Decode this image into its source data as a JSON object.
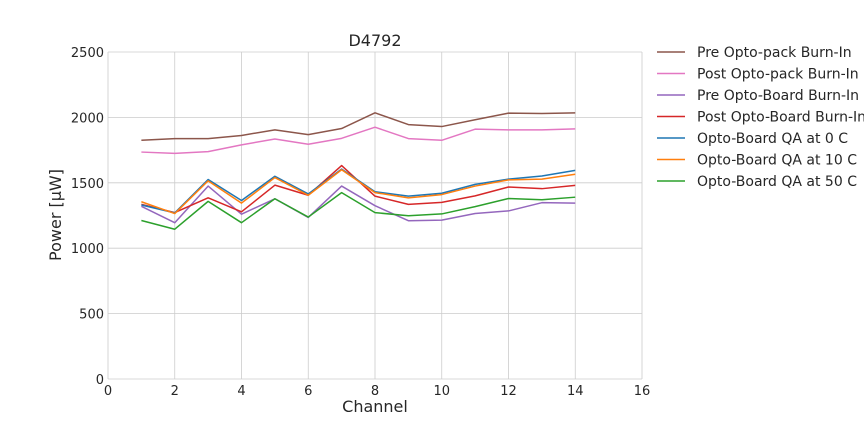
{
  "chart_data": {
    "type": "line",
    "title": "D4792",
    "xlabel": "Channel",
    "ylabel": "Power [μW]",
    "xlim": [
      0,
      16
    ],
    "ylim": [
      0,
      2500
    ],
    "xticks": [
      0,
      2,
      4,
      6,
      8,
      10,
      12,
      14,
      16
    ],
    "yticks": [
      0,
      500,
      1000,
      1500,
      2000,
      2500
    ],
    "grid": true,
    "legend_position": "outside-right-top",
    "x": [
      1,
      2,
      3,
      4,
      5,
      6,
      7,
      8,
      9,
      10,
      11,
      12,
      13,
      14
    ],
    "series": [
      {
        "name": "Pre Opto-pack Burn-In",
        "color": "#8c564b",
        "values": [
          1825,
          1838,
          1838,
          1862,
          1905,
          1868,
          1915,
          2035,
          1945,
          1930,
          1982,
          2033,
          2030,
          2035
        ]
      },
      {
        "name": "Post Opto-pack Burn-In",
        "color": "#e377c2",
        "values": [
          1735,
          1725,
          1738,
          1790,
          1835,
          1795,
          1840,
          1925,
          1838,
          1825,
          1910,
          1905,
          1905,
          1912
        ]
      },
      {
        "name": "Pre Opto-Board Burn-In",
        "color": "#9467bd",
        "values": [
          1320,
          1195,
          1475,
          1260,
          1378,
          1235,
          1475,
          1325,
          1210,
          1215,
          1265,
          1285,
          1348,
          1345
        ]
      },
      {
        "name": "Post Opto-Board Burn-In",
        "color": "#d62728",
        "values": [
          1335,
          1272,
          1385,
          1278,
          1482,
          1405,
          1632,
          1398,
          1335,
          1350,
          1400,
          1468,
          1455,
          1480
        ]
      },
      {
        "name": "Opto-Board QA at 0 C",
        "color": "#1f77b4",
        "values": [
          1330,
          1270,
          1525,
          1365,
          1550,
          1415,
          1605,
          1432,
          1398,
          1420,
          1488,
          1528,
          1552,
          1595
        ]
      },
      {
        "name": "Opto-Board QA at 10 C",
        "color": "#ff7f0e",
        "values": [
          1355,
          1265,
          1515,
          1345,
          1540,
          1405,
          1600,
          1425,
          1385,
          1410,
          1475,
          1522,
          1528,
          1565
        ]
      },
      {
        "name": "Opto-Board QA at 50 C",
        "color": "#2ca02c",
        "values": [
          1212,
          1145,
          1358,
          1195,
          1378,
          1238,
          1425,
          1272,
          1248,
          1262,
          1318,
          1380,
          1370,
          1390
        ]
      }
    ]
  }
}
